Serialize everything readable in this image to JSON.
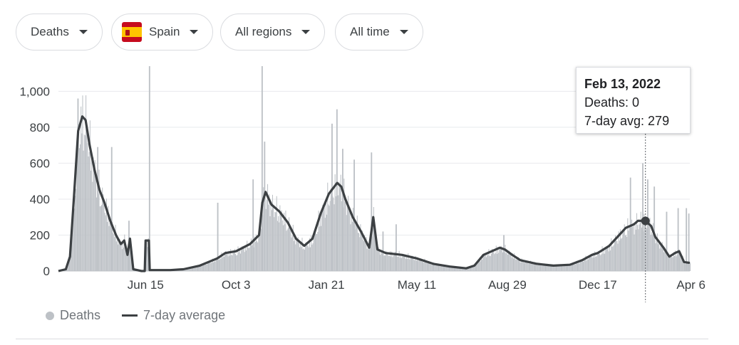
{
  "filters": {
    "metric": "Deaths",
    "country": "Spain",
    "region": "All regions",
    "time": "All time"
  },
  "tooltip": {
    "date": "Feb 13, 2022",
    "deaths_line": "Deaths: 0",
    "avg_line": "7-day avg: 279"
  },
  "legend": {
    "bars": "Deaths",
    "line": "7-day average"
  },
  "colors": {
    "bars": "#bdc1c6",
    "line": "#3c4043",
    "grid": "#e8eaed",
    "flag_red": "#c60b1e",
    "flag_yellow": "#ffc400"
  },
  "chart_data": {
    "type": "bar",
    "series": [
      {
        "name": "Deaths",
        "kind": "bar"
      },
      {
        "name": "7-day average",
        "kind": "line"
      }
    ],
    "x_start": "2020-03-01",
    "x_end": "2022-04-08",
    "x_ticks": [
      {
        "date": "2020-06-15",
        "label": "Jun 15"
      },
      {
        "date": "2020-10-03",
        "label": "Oct 3"
      },
      {
        "date": "2021-01-21",
        "label": "Jan 21"
      },
      {
        "date": "2021-05-11",
        "label": "May 11"
      },
      {
        "date": "2021-08-29",
        "label": "Aug 29"
      },
      {
        "date": "2021-12-17",
        "label": "Dec 17"
      },
      {
        "date": "2022-04-06",
        "label": "Apr 6"
      }
    ],
    "y_ticks": [
      {
        "v": 0,
        "label": "0"
      },
      {
        "v": 200,
        "label": "200"
      },
      {
        "v": 400,
        "label": "400"
      },
      {
        "v": 600,
        "label": "600"
      },
      {
        "v": 800,
        "label": "800"
      },
      {
        "v": 1000,
        "label": "1,000"
      }
    ],
    "ylim": [
      0,
      1140
    ],
    "grid": true,
    "legend_position": "bottom-left",
    "avg_points": [
      [
        "2020-03-01",
        0
      ],
      [
        "2020-03-10",
        10
      ],
      [
        "2020-03-15",
        80
      ],
      [
        "2020-03-20",
        420
      ],
      [
        "2020-03-25",
        780
      ],
      [
        "2020-03-30",
        860
      ],
      [
        "2020-04-03",
        840
      ],
      [
        "2020-04-08",
        700
      ],
      [
        "2020-04-14",
        560
      ],
      [
        "2020-04-20",
        450
      ],
      [
        "2020-04-26",
        380
      ],
      [
        "2020-05-03",
        280
      ],
      [
        "2020-05-10",
        200
      ],
      [
        "2020-05-16",
        150
      ],
      [
        "2020-05-20",
        170
      ],
      [
        "2020-05-24",
        90
      ],
      [
        "2020-05-27",
        180
      ],
      [
        "2020-05-31",
        10
      ],
      [
        "2020-06-10",
        0
      ],
      [
        "2020-06-14",
        0
      ],
      [
        "2020-06-15",
        170
      ],
      [
        "2020-06-19",
        170
      ],
      [
        "2020-06-20",
        5
      ],
      [
        "2020-07-15",
        5
      ],
      [
        "2020-07-31",
        10
      ],
      [
        "2020-08-20",
        30
      ],
      [
        "2020-09-10",
        70
      ],
      [
        "2020-09-20",
        100
      ],
      [
        "2020-10-03",
        110
      ],
      [
        "2020-10-20",
        150
      ],
      [
        "2020-10-31",
        200
      ],
      [
        "2020-11-04",
        380
      ],
      [
        "2020-11-08",
        440
      ],
      [
        "2020-11-15",
        370
      ],
      [
        "2020-11-25",
        330
      ],
      [
        "2020-12-05",
        270
      ],
      [
        "2020-12-15",
        180
      ],
      [
        "2020-12-25",
        140
      ],
      [
        "2021-01-04",
        180
      ],
      [
        "2021-01-14",
        320
      ],
      [
        "2021-01-24",
        430
      ],
      [
        "2021-02-03",
        490
      ],
      [
        "2021-02-08",
        470
      ],
      [
        "2021-02-13",
        400
      ],
      [
        "2021-02-22",
        300
      ],
      [
        "2021-03-04",
        220
      ],
      [
        "2021-03-14",
        130
      ],
      [
        "2021-03-19",
        300
      ],
      [
        "2021-03-24",
        120
      ],
      [
        "2021-04-03",
        100
      ],
      [
        "2021-04-23",
        90
      ],
      [
        "2021-05-11",
        70
      ],
      [
        "2021-05-31",
        40
      ],
      [
        "2021-06-20",
        25
      ],
      [
        "2021-07-10",
        15
      ],
      [
        "2021-07-20",
        30
      ],
      [
        "2021-07-31",
        90
      ],
      [
        "2021-08-10",
        110
      ],
      [
        "2021-08-20",
        130
      ],
      [
        "2021-08-26",
        120
      ],
      [
        "2021-09-04",
        90
      ],
      [
        "2021-09-14",
        60
      ],
      [
        "2021-10-04",
        40
      ],
      [
        "2021-10-24",
        30
      ],
      [
        "2021-11-13",
        35
      ],
      [
        "2021-11-28",
        60
      ],
      [
        "2021-12-10",
        90
      ],
      [
        "2021-12-17",
        100
      ],
      [
        "2021-12-31",
        140
      ],
      [
        "2022-01-10",
        190
      ],
      [
        "2022-01-20",
        240
      ],
      [
        "2022-01-30",
        260
      ],
      [
        "2022-02-04",
        280
      ],
      [
        "2022-02-13",
        279
      ],
      [
        "2022-02-20",
        250
      ],
      [
        "2022-02-25",
        190
      ],
      [
        "2022-03-07",
        130
      ],
      [
        "2022-03-14",
        80
      ],
      [
        "2022-03-21",
        100
      ],
      [
        "2022-03-26",
        110
      ],
      [
        "2022-04-01",
        50
      ],
      [
        "2022-04-08",
        45
      ]
    ],
    "spikes": [
      [
        "2020-03-24",
        960
      ],
      [
        "2020-04-17",
        690
      ],
      [
        "2020-05-04",
        690
      ],
      [
        "2020-05-25",
        280
      ],
      [
        "2020-06-19",
        1140
      ],
      [
        "2020-09-10",
        380
      ],
      [
        "2020-10-23",
        510
      ],
      [
        "2020-11-03",
        1140
      ],
      [
        "2020-11-06",
        720
      ],
      [
        "2021-01-27",
        820
      ],
      [
        "2021-02-02",
        900
      ],
      [
        "2021-02-09",
        680
      ],
      [
        "2021-02-23",
        620
      ],
      [
        "2021-03-16",
        660
      ],
      [
        "2021-03-30",
        220
      ],
      [
        "2021-04-15",
        260
      ],
      [
        "2021-08-24",
        200
      ],
      [
        "2022-01-25",
        520
      ],
      [
        "2022-02-09",
        600
      ],
      [
        "2022-02-15",
        510
      ],
      [
        "2022-02-23",
        470
      ],
      [
        "2022-03-10",
        330
      ],
      [
        "2022-03-24",
        350
      ],
      [
        "2022-04-03",
        350
      ],
      [
        "2022-04-06",
        320
      ]
    ],
    "highlight": {
      "date": "2022-02-13",
      "avg": 279,
      "deaths": 0
    }
  }
}
